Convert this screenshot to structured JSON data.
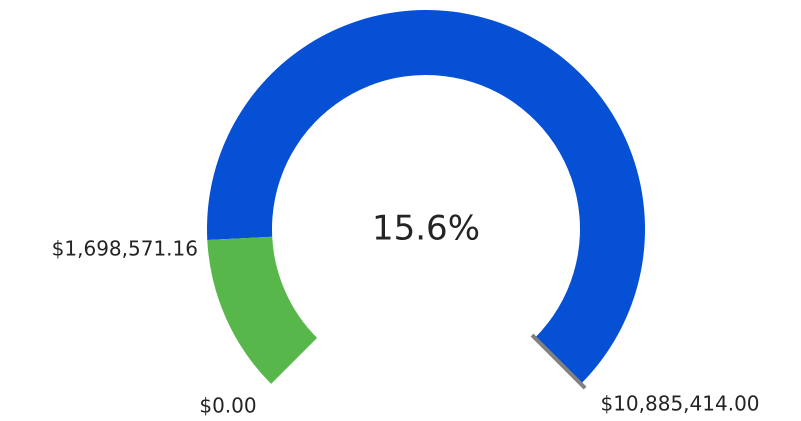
{
  "chart_data": {
    "type": "gauge",
    "min": {
      "value": 0,
      "label": "$0.00"
    },
    "max": {
      "value": 10885414,
      "label": "$10,885,414.00"
    },
    "value": 1698571.16,
    "value_label": "$1,698,571.16",
    "percent": 15.6,
    "percent_label": "15.6%",
    "fill_color": "#57b74b",
    "track_color": "#0550d4",
    "target_color": "#808080"
  }
}
